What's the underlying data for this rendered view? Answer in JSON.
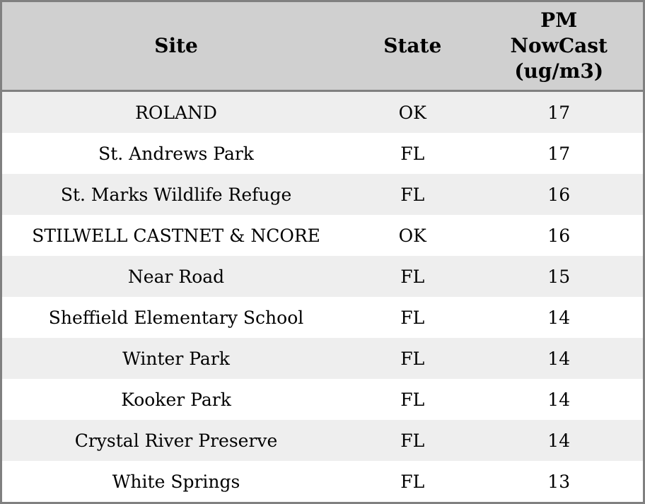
{
  "colors": {
    "border": "#808080",
    "header_bg": "#d0d0d0",
    "stripe_bg": "#eeeeee",
    "text": "#000000"
  },
  "table": {
    "columns": [
      {
        "key": "site",
        "label": "Site"
      },
      {
        "key": "state",
        "label": "State"
      },
      {
        "key": "value",
        "label": "PM NowCast (ug/m3)"
      }
    ],
    "rows": [
      {
        "site": "ROLAND",
        "state": "OK",
        "value": "17"
      },
      {
        "site": "St. Andrews Park",
        "state": "FL",
        "value": "17"
      },
      {
        "site": "St. Marks Wildlife Refuge",
        "state": "FL",
        "value": "16"
      },
      {
        "site": "STILWELL CASTNET & NCORE",
        "state": "OK",
        "value": "16"
      },
      {
        "site": "Near Road",
        "state": "FL",
        "value": "15"
      },
      {
        "site": "Sheffield Elementary School",
        "state": "FL",
        "value": "14"
      },
      {
        "site": "Winter Park",
        "state": "FL",
        "value": "14"
      },
      {
        "site": "Kooker Park",
        "state": "FL",
        "value": "14"
      },
      {
        "site": "Crystal River Preserve",
        "state": "FL",
        "value": "14"
      },
      {
        "site": "White Springs",
        "state": "FL",
        "value": "13"
      }
    ]
  },
  "chart_data": {
    "type": "table",
    "title": "",
    "columns": [
      "Site",
      "State",
      "PM NowCast (ug/m3)"
    ],
    "categories": [
      "ROLAND",
      "St. Andrews Park",
      "St. Marks Wildlife Refuge",
      "STILWELL CASTNET & NCORE",
      "Near Road",
      "Sheffield Elementary School",
      "Winter Park",
      "Kooker Park",
      "Crystal River Preserve",
      "White Springs"
    ],
    "states": [
      "OK",
      "FL",
      "FL",
      "OK",
      "FL",
      "FL",
      "FL",
      "FL",
      "FL",
      "FL"
    ],
    "values": [
      17,
      17,
      16,
      16,
      15,
      14,
      14,
      14,
      14,
      13
    ],
    "value_label": "PM NowCast (ug/m3)"
  }
}
